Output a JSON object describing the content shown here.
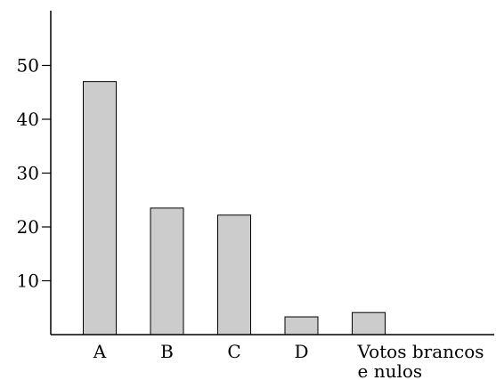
{
  "chart_data": {
    "type": "bar",
    "categories": [
      "A",
      "B",
      "C",
      "D",
      "Votos brancos e nulos"
    ],
    "category_label_lines": [
      [
        "A"
      ],
      [
        "B"
      ],
      [
        "C"
      ],
      [
        "D"
      ],
      [
        "Votos brancos",
        "e nulos"
      ]
    ],
    "values": [
      47,
      23.5,
      22.2,
      3.3,
      4.1
    ],
    "y_ticks": [
      10,
      20,
      30,
      40,
      50
    ],
    "ylim": [
      0,
      60
    ],
    "title": "",
    "xlabel": "",
    "ylabel": "",
    "grid": false,
    "bar_color": "#cccccc",
    "bar_edge_color": "#000000"
  }
}
